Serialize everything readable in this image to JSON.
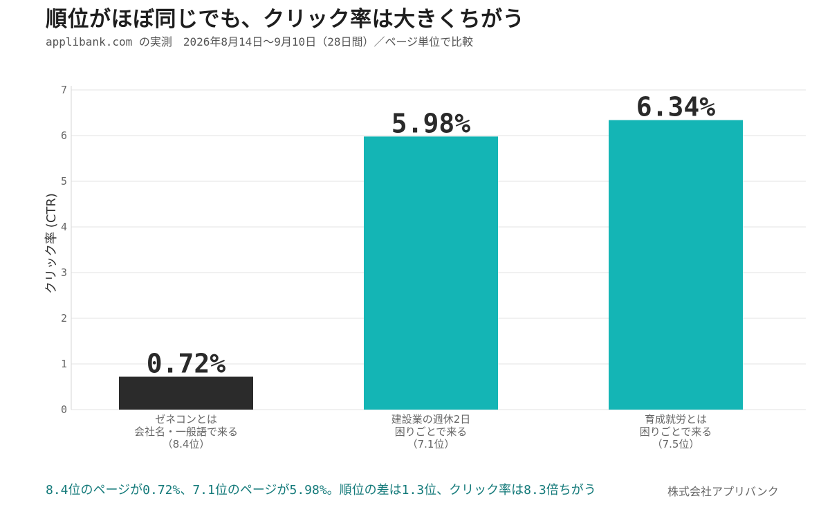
{
  "header": {
    "title": "順位がほぼ同じでも、クリック率は大きくちがう",
    "subtitle": "applibank.com の実測　2026年8月14日〜9月10日（28日間）／ページ単位で比較"
  },
  "colors": {
    "accent": "#14b5b5",
    "dark": "#2b2b2b",
    "grid": "#e3e3e3",
    "footnote": "#147a7a"
  },
  "chart_data": {
    "type": "bar",
    "ylabel": "クリック率 (CTR)",
    "ylim": [
      0,
      7
    ],
    "yticks": [
      0,
      1,
      2,
      3,
      4,
      5,
      6,
      7
    ],
    "grid": true,
    "categories": [
      {
        "lines": [
          "ゼネコンとは",
          "会社名・一般語で来る",
          "（8.4位）"
        ],
        "value": 0.72,
        "label": "0.72%",
        "color": "#2b2b2b"
      },
      {
        "lines": [
          "建設業の週休2日",
          "困りごとで来る",
          "（7.1位）"
        ],
        "value": 5.98,
        "label": "5.98%",
        "color": "#14b5b5"
      },
      {
        "lines": [
          "育成就労とは",
          "困りごとで来る",
          "（7.5位）"
        ],
        "value": 6.34,
        "label": "6.34%",
        "color": "#14b5b5"
      }
    ]
  },
  "footer": {
    "note": "8.4位のページが0.72%、7.1位のページが5.98%。順位の差は1.3位、クリック率は8.3倍ちがう",
    "credit": "株式会社アプリバンク"
  }
}
